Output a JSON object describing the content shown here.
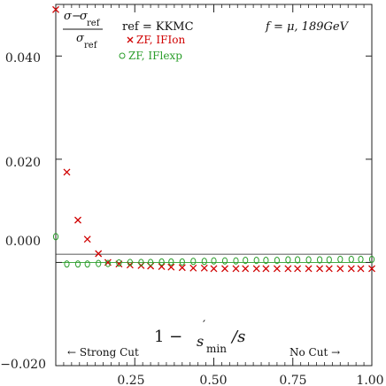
{
  "chart_data": {
    "type": "scatter",
    "xlim": [
      0.0,
      1.0
    ],
    "ylim": [
      -0.02,
      0.05
    ],
    "x_ticks": [
      "0.25",
      "0.50",
      "0.75",
      "1.00"
    ],
    "y_ticks": [
      "0.040",
      "0.020",
      "0.000",
      "−0.020"
    ],
    "header": {
      "frac_num_sigma": "σ",
      "frac_num_minus": "−",
      "frac_num_sigma2": "σ",
      "frac_num_sub": "ref",
      "frac_den_sigma": "σ",
      "frac_den_sub": "ref",
      "ref_text": "ref = KKMC",
      "process_text": "f = μ, 189GeV",
      "series1_label": "ZF, IFIon",
      "series2_label": "ZF, IFlexp"
    },
    "xaxis_label": {
      "one_minus": "1 −",
      "s": "s",
      "prime": "′",
      "sub": "min",
      "slash_s": "/s"
    },
    "annotations": {
      "strong_cut": "← Strong Cut",
      "no_cut": "No Cut →"
    },
    "series": [
      {
        "name": "ZF, IFIon",
        "marker": "x",
        "color": "#d00000",
        "points": [
          {
            "x": 0.0,
            "y": 0.049
          },
          {
            "x": 0.035,
            "y": 0.0175
          },
          {
            "x": 0.07,
            "y": 0.0082
          },
          {
            "x": 0.1,
            "y": 0.0045
          },
          {
            "x": 0.135,
            "y": 0.0017
          },
          {
            "x": 0.165,
            "y": 0.0
          },
          {
            "x": 0.2,
            "y": -0.0003
          },
          {
            "x": 0.235,
            "y": -0.0005
          },
          {
            "x": 0.27,
            "y": -0.0006
          },
          {
            "x": 0.3,
            "y": -0.0007
          },
          {
            "x": 0.335,
            "y": -0.0008
          },
          {
            "x": 0.365,
            "y": -0.0009
          },
          {
            "x": 0.4,
            "y": -0.001
          },
          {
            "x": 0.435,
            "y": -0.0011
          },
          {
            "x": 0.47,
            "y": -0.0011
          },
          {
            "x": 0.5,
            "y": -0.0012
          },
          {
            "x": 0.535,
            "y": -0.0012
          },
          {
            "x": 0.57,
            "y": -0.0012
          },
          {
            "x": 0.6,
            "y": -0.0012
          },
          {
            "x": 0.635,
            "y": -0.0012
          },
          {
            "x": 0.665,
            "y": -0.0012
          },
          {
            "x": 0.7,
            "y": -0.0012
          },
          {
            "x": 0.735,
            "y": -0.0012
          },
          {
            "x": 0.765,
            "y": -0.0012
          },
          {
            "x": 0.8,
            "y": -0.0012
          },
          {
            "x": 0.835,
            "y": -0.0012
          },
          {
            "x": 0.865,
            "y": -0.0012
          },
          {
            "x": 0.9,
            "y": -0.0012
          },
          {
            "x": 0.935,
            "y": -0.0012
          },
          {
            "x": 0.965,
            "y": -0.0012
          },
          {
            "x": 1.0,
            "y": -0.0012
          }
        ]
      },
      {
        "name": "ZF, IFlexp",
        "marker": "o",
        "color": "#2a9d2a",
        "points": [
          {
            "x": 0.0,
            "y": 0.005
          },
          {
            "x": 0.035,
            "y": -0.0003
          },
          {
            "x": 0.07,
            "y": -0.0003
          },
          {
            "x": 0.1,
            "y": -0.0003
          },
          {
            "x": 0.135,
            "y": -0.0002
          },
          {
            "x": 0.165,
            "y": -0.0002
          },
          {
            "x": 0.2,
            "y": -0.0001
          },
          {
            "x": 0.235,
            "y": 0.0
          },
          {
            "x": 0.27,
            "y": 0.0
          },
          {
            "x": 0.3,
            "y": 0.0
          },
          {
            "x": 0.335,
            "y": 0.0001
          },
          {
            "x": 0.365,
            "y": 0.0001
          },
          {
            "x": 0.4,
            "y": 0.0001
          },
          {
            "x": 0.435,
            "y": 0.0002
          },
          {
            "x": 0.47,
            "y": 0.0002
          },
          {
            "x": 0.5,
            "y": 0.0003
          },
          {
            "x": 0.535,
            "y": 0.0003
          },
          {
            "x": 0.57,
            "y": 0.0003
          },
          {
            "x": 0.6,
            "y": 0.0004
          },
          {
            "x": 0.635,
            "y": 0.0004
          },
          {
            "x": 0.665,
            "y": 0.0004
          },
          {
            "x": 0.7,
            "y": 0.0004
          },
          {
            "x": 0.735,
            "y": 0.0005
          },
          {
            "x": 0.765,
            "y": 0.0005
          },
          {
            "x": 0.8,
            "y": 0.0005
          },
          {
            "x": 0.835,
            "y": 0.0005
          },
          {
            "x": 0.865,
            "y": 0.0005
          },
          {
            "x": 0.9,
            "y": 0.0006
          },
          {
            "x": 0.935,
            "y": 0.0006
          },
          {
            "x": 0.965,
            "y": 0.0006
          },
          {
            "x": 1.0,
            "y": 0.0006
          }
        ]
      }
    ]
  }
}
